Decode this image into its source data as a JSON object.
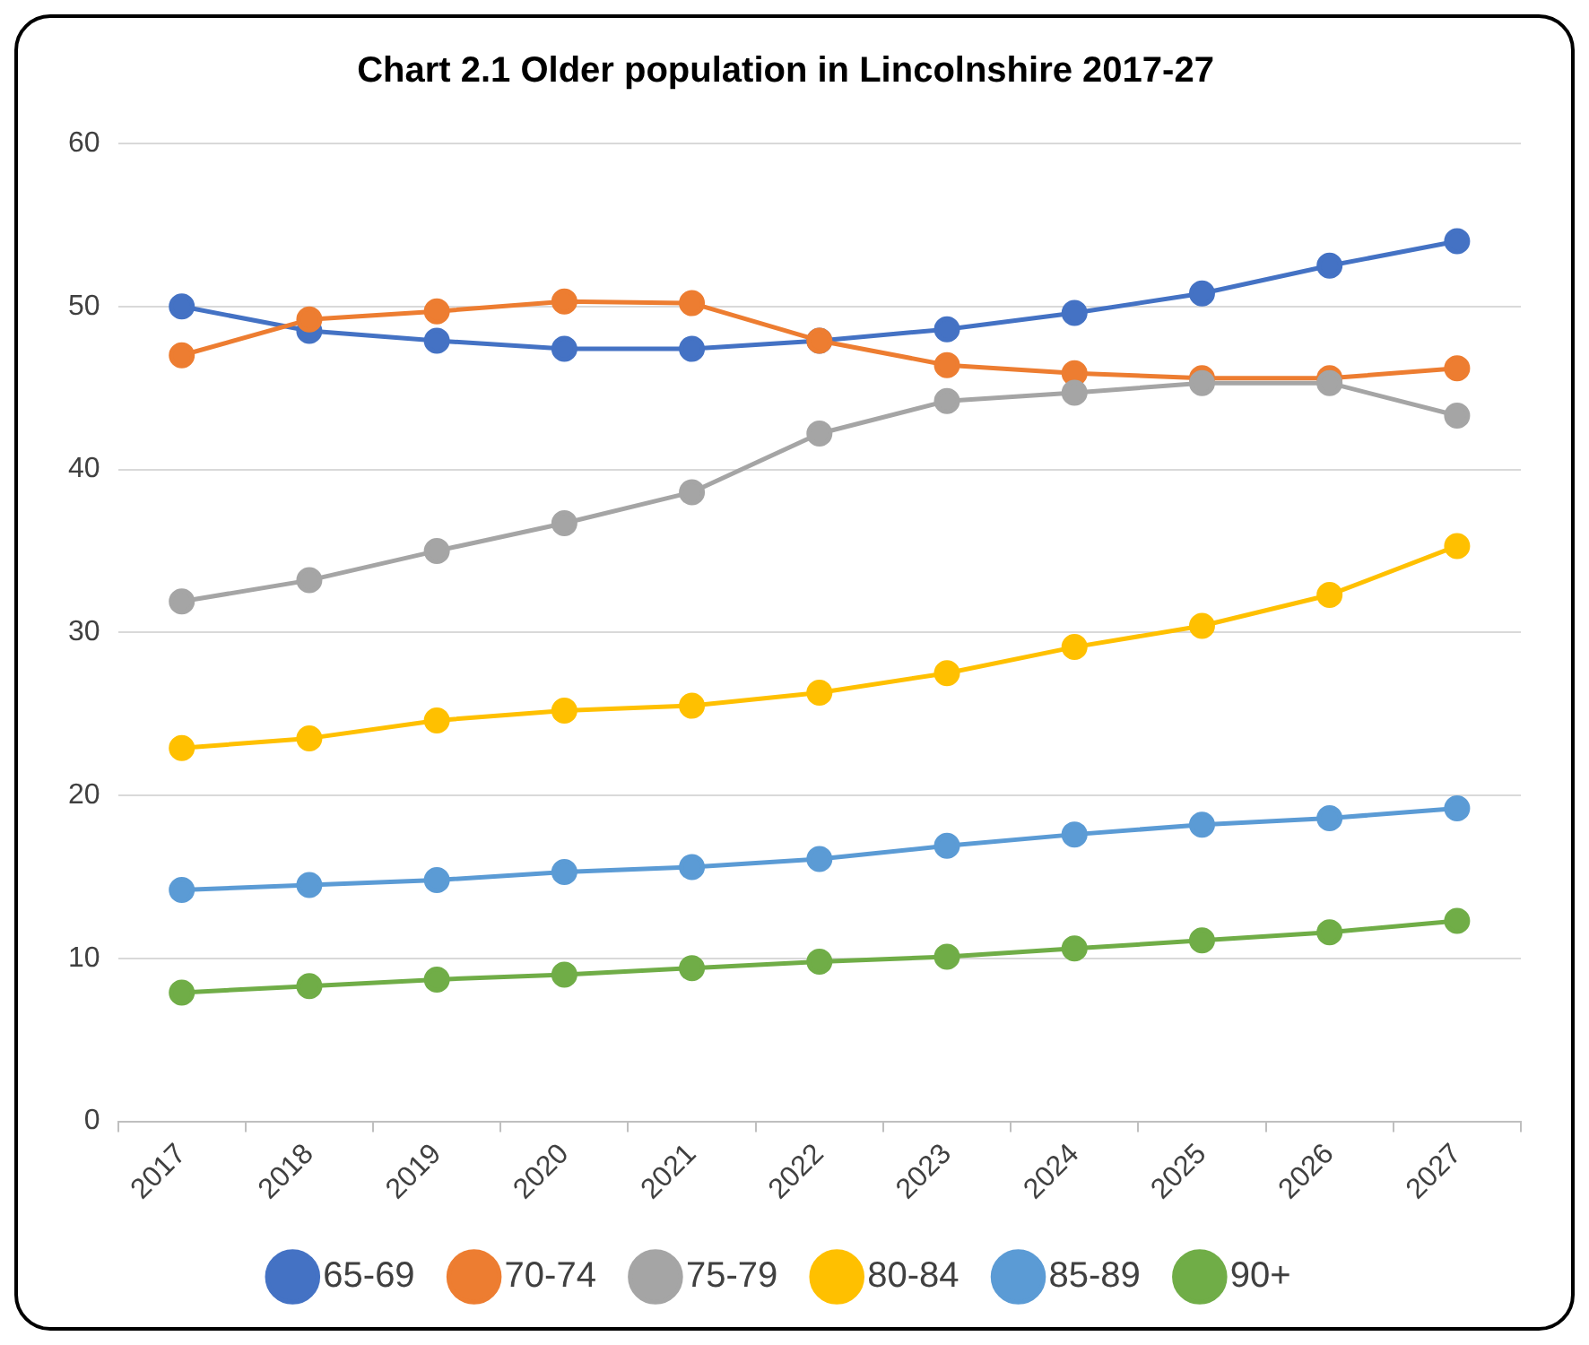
{
  "chart_data": {
    "type": "line",
    "title": "Chart 2.1 Older population in Lincolnshire 2017-27",
    "categories": [
      "2017",
      "2018",
      "2019",
      "2020",
      "2021",
      "2022",
      "2023",
      "2024",
      "2025",
      "2026",
      "2027"
    ],
    "series": [
      {
        "name": "65-69",
        "color": "#4472c4",
        "values": [
          50.0,
          48.5,
          47.9,
          47.4,
          47.4,
          47.9,
          48.6,
          49.6,
          50.8,
          52.5,
          54.0
        ]
      },
      {
        "name": "70-74",
        "color": "#ed7d31",
        "values": [
          47.0,
          49.2,
          49.7,
          50.3,
          50.2,
          47.9,
          46.4,
          45.9,
          45.6,
          45.6,
          46.2
        ]
      },
      {
        "name": "75-79",
        "color": "#a5a5a5",
        "values": [
          31.9,
          33.2,
          35.0,
          36.7,
          38.6,
          42.2,
          44.2,
          44.7,
          45.3,
          45.3,
          43.3
        ]
      },
      {
        "name": "80-84",
        "color": "#ffc000",
        "values": [
          22.9,
          23.5,
          24.6,
          25.2,
          25.5,
          26.3,
          27.5,
          29.1,
          30.4,
          32.3,
          35.3
        ]
      },
      {
        "name": "85-89",
        "color": "#5b9bd5",
        "values": [
          14.2,
          14.5,
          14.8,
          15.3,
          15.6,
          16.1,
          16.9,
          17.6,
          18.2,
          18.6,
          19.2
        ]
      },
      {
        "name": "90+",
        "color": "#70ad47",
        "values": [
          7.9,
          8.3,
          8.7,
          9.0,
          9.4,
          9.8,
          10.1,
          10.6,
          11.1,
          11.6,
          12.3
        ]
      }
    ],
    "ylim": [
      0,
      60
    ],
    "yticks": [
      0,
      10,
      20,
      30,
      40,
      50,
      60
    ],
    "grid": "y",
    "legend": "bottom",
    "marker": "circle",
    "line_style": "solid"
  }
}
